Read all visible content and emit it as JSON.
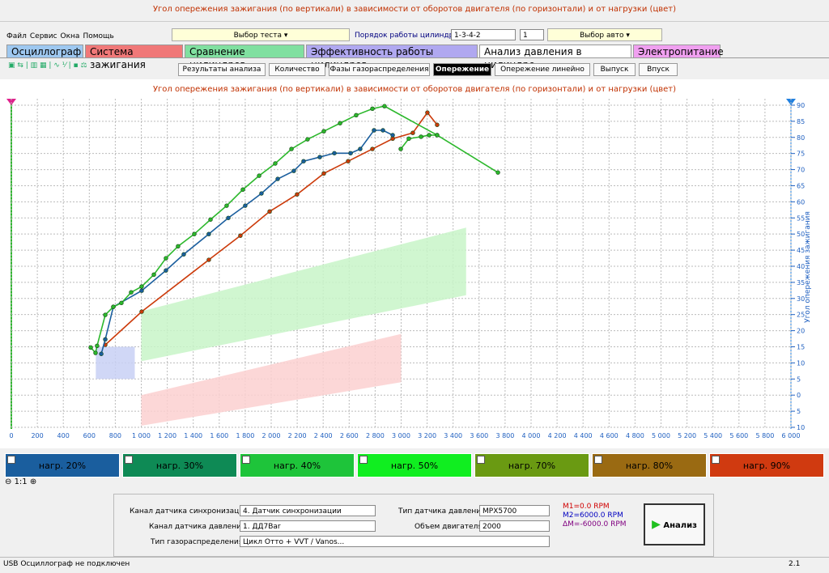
{
  "window_title": "Угол опережения зажигания (по вертикали) в зависимости от оборотов двигателя (по горизонтали) и от нагрузки (цвет)",
  "menu": [
    "Файл",
    "Сервис",
    "Окна",
    "Помощь"
  ],
  "toolbar": {
    "test_select": "Выбор теста",
    "cylinder_order_label": "Порядок работы цилиндров",
    "cylinder_order": "1-3-4-2",
    "cylinder_num": "1",
    "car_select": "Выбор авто"
  },
  "main_tabs": [
    {
      "label": "Осциллограф",
      "color": "#9ec8f0"
    },
    {
      "label": "Система зажигания",
      "color": "#f07878"
    },
    {
      "label": "Сравнение цилиндров",
      "color": "#80e0a0"
    },
    {
      "label": "Эффективность работы цилиндров",
      "color": "#b0a8f0"
    },
    {
      "label": "Анализ давления в цилиндре",
      "color": "#ffffff"
    },
    {
      "label": "Электропитание",
      "color": "#f0a0f0"
    }
  ],
  "sub_tabs": [
    "Результаты анализа",
    "Количество",
    "Фазы газораспределения",
    "Опережение",
    "Опережение линейно",
    "Выпуск",
    "Впуск"
  ],
  "chart_data": {
    "type": "line",
    "title": "Угол опережения зажигания (по вертикали) в зависимости от оборотов двигателя (по горизонтали) и от нагрузки (цвет)",
    "y_label": "Угол опережения зажигания",
    "xlim": [
      0,
      6000
    ],
    "ylim": [
      -10,
      92
    ],
    "grid": true,
    "xticks": [
      0,
      200,
      400,
      600,
      800,
      {
        "value": 1000,
        "label": "1 000"
      },
      {
        "value": 1200,
        "label": "1 200"
      },
      {
        "value": 1400,
        "label": "1 400"
      },
      {
        "value": 1600,
        "label": "1 600"
      },
      {
        "value": 1800,
        "label": "1 800"
      },
      {
        "value": 2000,
        "label": "2 000"
      },
      {
        "value": 2200,
        "label": "2 200"
      },
      {
        "value": 2400,
        "label": "2 400"
      },
      {
        "value": 2600,
        "label": "2 600"
      },
      {
        "value": 2800,
        "label": "2 800"
      },
      {
        "value": 3000,
        "label": "3 000"
      },
      {
        "value": 3200,
        "label": "3 200"
      },
      {
        "value": 3400,
        "label": "3 400"
      },
      {
        "value": 3600,
        "label": "3 600"
      },
      {
        "value": 3800,
        "label": "3 800"
      },
      {
        "value": 4000,
        "label": "4 000"
      },
      {
        "value": 4200,
        "label": "4 200"
      },
      {
        "value": 4400,
        "label": "4 400"
      },
      {
        "value": 4600,
        "label": "4 600"
      },
      {
        "value": 4800,
        "label": "4 800"
      },
      {
        "value": 5000,
        "label": "5 000"
      },
      {
        "value": 5200,
        "label": "5 200"
      },
      {
        "value": 5400,
        "label": "5 400"
      },
      {
        "value": 5600,
        "label": "5 600"
      },
      {
        "value": 5800,
        "label": "5 800"
      },
      {
        "value": 6000,
        "label": "6 000"
      }
    ],
    "yticks": [
      90,
      85,
      80,
      75,
      70,
      65,
      60,
      55,
      50,
      45,
      40,
      35,
      30,
      25,
      20,
      15,
      10,
      5,
      0,
      {
        "value": -5,
        "label": "5"
      },
      {
        "value": -10,
        "label": "10"
      }
    ],
    "bands": [
      {
        "color": "#c8f5c8",
        "x": [
          1000,
          3500
        ],
        "lower": [
          10.5,
          31
        ],
        "upper": [
          26,
          52
        ]
      },
      {
        "color": "#fbd0d0",
        "x": [
          1000,
          3000
        ],
        "lower": [
          -9.5,
          4
        ],
        "upper": [
          0,
          19
        ]
      },
      {
        "color": "#c8d0f5",
        "x": [
          650,
          950
        ],
        "lower": [
          5,
          5
        ],
        "upper": [
          15,
          15
        ]
      }
    ],
    "series": [
      {
        "color": "#cc3a0a",
        "x": [
          723,
          1003,
          1520,
          1763,
          1988,
          2199,
          2405,
          2592,
          2779,
          2935,
          3090,
          3202,
          3277
        ],
        "values": [
          15.6,
          25.9,
          42,
          49.5,
          57,
          62.3,
          68.8,
          72.6,
          76.4,
          79.6,
          81.4,
          87.7,
          83.9
        ]
      },
      {
        "color": "#1a5e9e",
        "x": [
          692,
          723,
          785,
          1003,
          1190,
          1327,
          1520,
          1670,
          1800,
          1925,
          2050,
          2174,
          2249,
          2374,
          2486,
          2611,
          2685,
          2791,
          2860,
          2935
        ],
        "values": [
          12.8,
          17.3,
          27.4,
          32.4,
          38.7,
          43.7,
          50,
          55,
          58.8,
          62.6,
          67.1,
          69.6,
          72.6,
          73.9,
          75.1,
          75.1,
          76.4,
          82.2,
          82.2,
          80.7
        ]
      },
      {
        "color": "#2cb82c",
        "x": [
          611,
          648,
          660,
          723,
          785,
          847,
          922,
          1003,
          1097,
          1190,
          1283,
          1408,
          1533,
          1657,
          1782,
          1907,
          2031,
          2156,
          2280,
          2405,
          2530,
          2654,
          2779,
          2872,
          3277,
          3745
        ],
        "values": [
          14.8,
          13.1,
          15.3,
          24.9,
          27.4,
          28.6,
          31.9,
          33.7,
          37.4,
          42.5,
          46.2,
          50,
          54.5,
          58.8,
          63.8,
          68.1,
          71.9,
          76.4,
          79.4,
          81.9,
          84.4,
          86.9,
          88.9,
          89.7,
          80.7,
          69.1
        ]
      },
      {
        "color": "#2cb82c",
        "x": [
          2997,
          3059,
          3153,
          3215,
          3277
        ],
        "values": [
          76.4,
          79.6,
          80.2,
          80.7,
          80.7
        ]
      }
    ]
  },
  "loads": [
    {
      "label": "нагр. 20%",
      "color": "#1a5e9e"
    },
    {
      "label": "нагр. 30%",
      "color": "#0e8a55"
    },
    {
      "label": "нагр. 40%",
      "color": "#1ec43a"
    },
    {
      "label": "нагр. 50%",
      "color": "#10ee20"
    },
    {
      "label": "нагр. 70%",
      "color": "#6a9a12"
    },
    {
      "label": "нагр. 80%",
      "color": "#9a6a12"
    },
    {
      "label": "нагр. 90%",
      "color": "#d03a10"
    }
  ],
  "zoom": "1:1",
  "settings": {
    "sync_label": "Канал датчика синхронизации",
    "sync_value": "4. Датчик синхронизации",
    "pressure_label": "Канал датчика давления",
    "pressure_value": "1. ДД7Bar",
    "timing_label": "Тип газораспределения",
    "timing_value": "Цикл Отто + VVT / Vanos...",
    "sensor_type_label": "Тип датчика давления",
    "sensor_type_value": "MPX5700",
    "volume_label": "Объем двигателя",
    "volume_value": "2000",
    "m1": "M1=0.0 RPM",
    "m2": "M2=6000.0 RPM",
    "dm": "ΔM=-6000.0 RPM",
    "analyze": "Анализ"
  },
  "status": {
    "left": "USB Осциллограф не подключен",
    "right": "2.1"
  }
}
